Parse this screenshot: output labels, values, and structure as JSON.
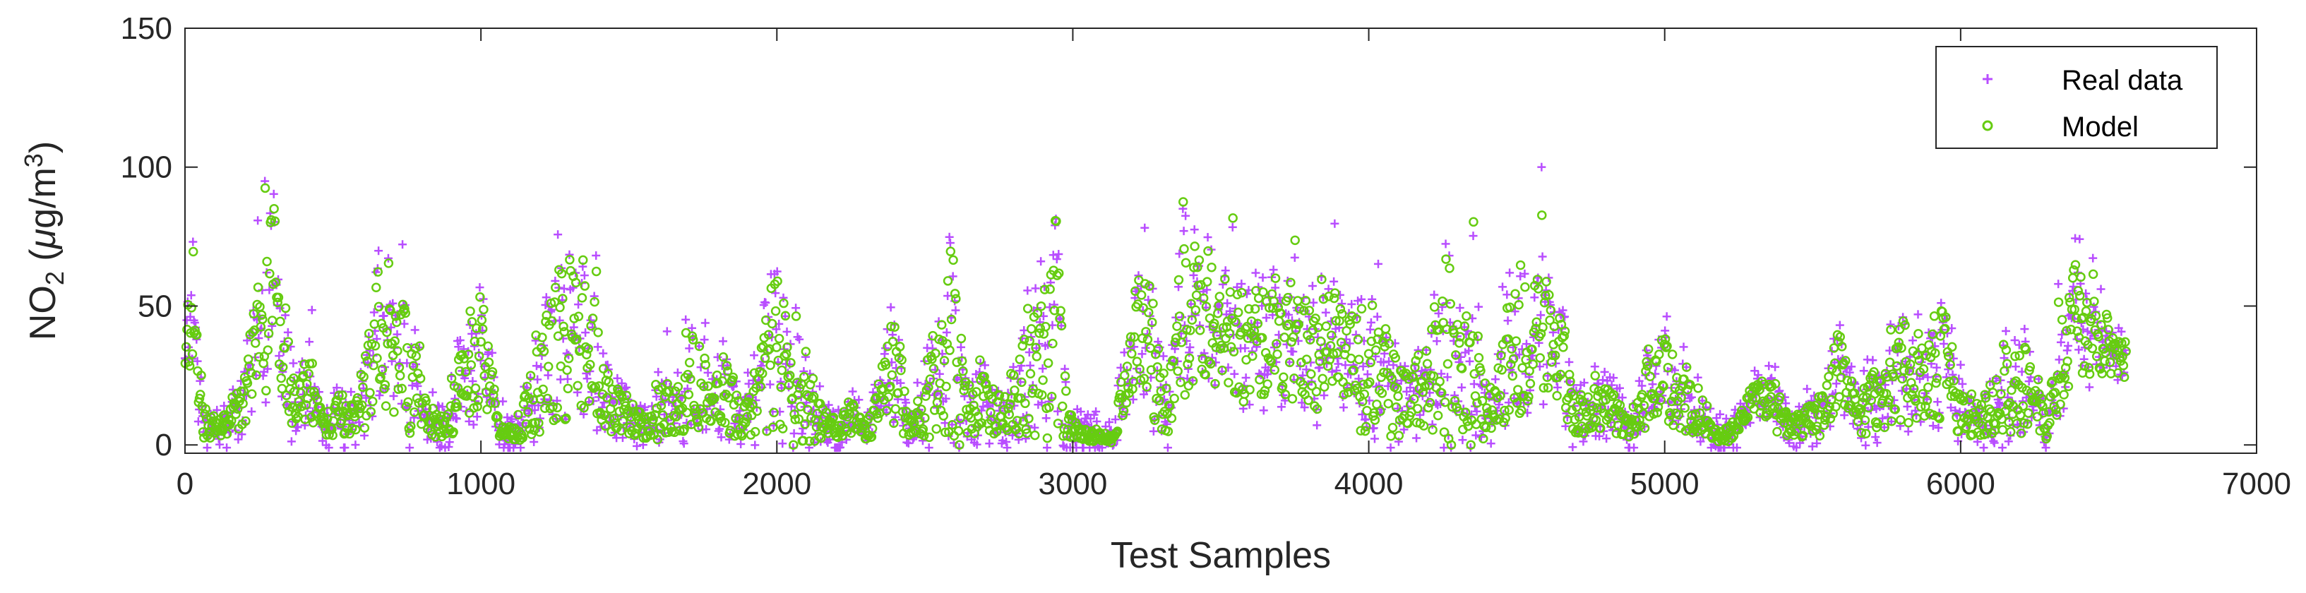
{
  "chart_data": {
    "type": "scatter",
    "xlabel": "Test Samples",
    "ylabel": {
      "base": "NO",
      "sub": "2",
      "unit_open": " (",
      "mu": "μ",
      "unit_mid": "g/m",
      "sup": "3",
      "unit_close": ")"
    },
    "xlim": [
      0,
      7000
    ],
    "ylim": [
      0,
      150
    ],
    "x_ticks": [
      0,
      1000,
      2000,
      3000,
      4000,
      5000,
      6000,
      7000
    ],
    "y_ticks": [
      0,
      50,
      100,
      150
    ],
    "x_tick_labels": [
      "0",
      "1000",
      "2000",
      "3000",
      "4000",
      "5000",
      "6000",
      "7000"
    ],
    "y_tick_labels": [
      "0",
      "50",
      "100",
      "150"
    ],
    "grid": false,
    "legend_position": "top-right",
    "n_samples": 6560,
    "series": [
      {
        "name": "Real data",
        "marker": "plus",
        "color": "#b84dff"
      },
      {
        "name": "Model",
        "marker": "circle",
        "color": "#66cc11"
      }
    ],
    "series_envelope": {
      "x": [
        0,
        20,
        60,
        120,
        180,
        250,
        300,
        330,
        370,
        420,
        470,
        520,
        580,
        640,
        700,
        760,
        820,
        880,
        960,
        1000,
        1060,
        1120,
        1200,
        1280,
        1320,
        1380,
        1440,
        1520,
        1560,
        1620,
        1680,
        1720,
        1780,
        1820,
        1880,
        1920,
        1960,
        2000,
        2050,
        2100,
        2150,
        2200,
        2250,
        2300,
        2350,
        2400,
        2440,
        2480,
        2520,
        2560,
        2600,
        2640,
        2700,
        2760,
        2820,
        2880,
        2940,
        2980,
        3020,
        3080,
        3140,
        3200,
        3260,
        3320,
        3360,
        3400,
        3460,
        3520,
        3580,
        3640,
        3700,
        3760,
        3820,
        3880,
        3920,
        3980,
        4020,
        4080,
        4140,
        4200,
        4260,
        4300,
        4340,
        4400,
        4460,
        4520,
        4580,
        4640,
        4700,
        4760,
        4820,
        4880,
        4940,
        5000,
        5060,
        5120,
        5180,
        5240,
        5300,
        5360,
        5420,
        5480,
        5540,
        5580,
        5640,
        5700,
        5760,
        5820,
        5880,
        5940,
        6000,
        6060,
        6120,
        6180,
        6240,
        6290,
        6340,
        6380,
        6420,
        6460,
        6500,
        6540,
        6560
      ],
      "y_mid": [
        25,
        55,
        8,
        6,
        10,
        35,
        60,
        40,
        12,
        20,
        6,
        12,
        10,
        35,
        40,
        25,
        8,
        6,
        28,
        38,
        5,
        4,
        22,
        40,
        36,
        32,
        15,
        8,
        6,
        15,
        12,
        28,
        10,
        20,
        8,
        12,
        25,
        30,
        20,
        18,
        8,
        6,
        10,
        4,
        15,
        30,
        6,
        10,
        20,
        35,
        30,
        12,
        15,
        12,
        18,
        30,
        40,
        8,
        4,
        3,
        2,
        40,
        35,
        10,
        40,
        45,
        42,
        40,
        35,
        38,
        40,
        35,
        30,
        40,
        25,
        30,
        28,
        20,
        15,
        25,
        30,
        20,
        30,
        10,
        25,
        40,
        42,
        35,
        10,
        15,
        12,
        6,
        20,
        25,
        15,
        12,
        3,
        5,
        18,
        15,
        6,
        8,
        12,
        30,
        10,
        15,
        20,
        28,
        25,
        30,
        12,
        10,
        15,
        18,
        20,
        5,
        35,
        45,
        42,
        40,
        35,
        30,
        30
      ],
      "y_spread": [
        20,
        40,
        8,
        5,
        10,
        35,
        45,
        30,
        12,
        20,
        5,
        12,
        10,
        40,
        40,
        30,
        8,
        5,
        30,
        30,
        4,
        4,
        25,
        45,
        40,
        30,
        15,
        8,
        5,
        20,
        10,
        35,
        10,
        25,
        8,
        12,
        30,
        45,
        30,
        30,
        8,
        5,
        10,
        4,
        15,
        35,
        5,
        10,
        25,
        45,
        60,
        15,
        15,
        12,
        20,
        40,
        55,
        8,
        4,
        3,
        2,
        30,
        35,
        10,
        40,
        35,
        30,
        30,
        30,
        30,
        30,
        30,
        25,
        35,
        25,
        40,
        30,
        25,
        15,
        25,
        50,
        25,
        45,
        10,
        25,
        45,
        30,
        30,
        10,
        15,
        12,
        5,
        20,
        25,
        15,
        12,
        3,
        5,
        8,
        15,
        5,
        8,
        12,
        25,
        10,
        15,
        20,
        30,
        25,
        30,
        12,
        10,
        15,
        20,
        25,
        5,
        30,
        30,
        25,
        20,
        15,
        10,
        10
      ]
    }
  },
  "legend": {
    "items": [
      {
        "label": "Real data"
      },
      {
        "label": "Model"
      }
    ]
  }
}
